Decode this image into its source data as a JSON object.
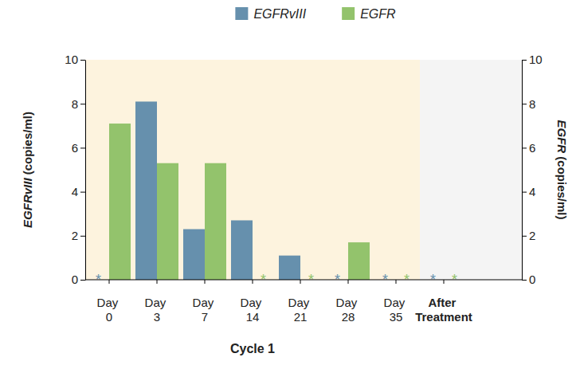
{
  "chart_data": {
    "type": "bar",
    "x_label": "Cycle 1",
    "y_label": "EGFRvIII (copies/ml)",
    "y2_label": "EGFR (copies/ml)",
    "categories": [
      "Day 0",
      "Day 3",
      "Day 7",
      "Day 14",
      "Day 21",
      "Day 28",
      "Day 35",
      "After Treatment"
    ],
    "series": [
      {
        "name": "EGFRvIII",
        "color": "#6690ad",
        "values": [
          0,
          8.1,
          2.3,
          2.7,
          1.1,
          0,
          0,
          0
        ],
        "value_labels": [
          "*",
          null,
          null,
          null,
          null,
          "*",
          "*",
          "*"
        ]
      },
      {
        "name": "EGFR",
        "color": "#93c36c",
        "axis": "y2",
        "values": [
          7.1,
          5.3,
          5.3,
          0,
          0,
          1.7,
          0,
          0
        ],
        "value_labels": [
          null,
          null,
          null,
          "*",
          "*",
          null,
          "*",
          "*"
        ]
      }
    ],
    "ylim": [
      0,
      10
    ],
    "yticks": [
      0,
      2,
      4,
      6,
      8,
      10
    ],
    "y2lim": [
      0,
      10
    ],
    "y2ticks": [
      0,
      2,
      4,
      6,
      8,
      10
    ],
    "legend": "top"
  }
}
